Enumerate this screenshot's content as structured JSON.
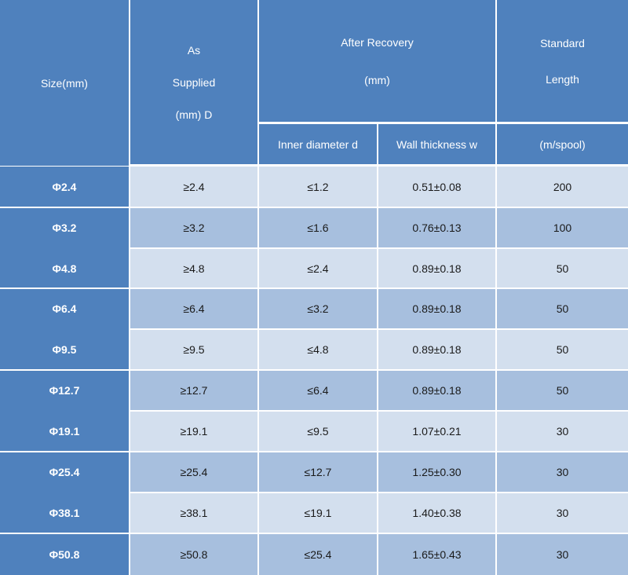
{
  "header": {
    "size": "Size(mm)",
    "as_supplied_lines": [
      "As",
      "Supplied",
      "(mm) D"
    ],
    "after_recovery_lines": [
      "After Recovery",
      "(mm)"
    ],
    "inner_diameter": "Inner diameter d",
    "wall_thickness": "Wall thickness w",
    "standard_length_lines": [
      "Standard",
      "Length"
    ],
    "standard_length_unit": "(m/spool)"
  },
  "rows": [
    {
      "size": "Φ2.4",
      "supplied": "≥2.4",
      "inner": "≤1.2",
      "wall": "0.51±0.08",
      "length": "200"
    },
    {
      "size": "Φ3.2",
      "supplied": "≥3.2",
      "inner": "≤1.6",
      "wall": "0.76±0.13",
      "length": "100"
    },
    {
      "size": "Φ4.8",
      "supplied": "≥4.8",
      "inner": "≤2.4",
      "wall": "0.89±0.18",
      "length": "50"
    },
    {
      "size": "Φ6.4",
      "supplied": "≥6.4",
      "inner": "≤3.2",
      "wall": "0.89±0.18",
      "length": "50"
    },
    {
      "size": "Φ9.5",
      "supplied": "≥9.5",
      "inner": "≤4.8",
      "wall": "0.89±0.18",
      "length": "50"
    },
    {
      "size": "Φ12.7",
      "supplied": "≥12.7",
      "inner": "≤6.4",
      "wall": "0.89±0.18",
      "length": "50"
    },
    {
      "size": "Φ19.1",
      "supplied": "≥19.1",
      "inner": "≤9.5",
      "wall": "1.07±0.21",
      "length": "30"
    },
    {
      "size": "Φ25.4",
      "supplied": "≥25.4",
      "inner": "≤12.7",
      "wall": "1.25±0.30",
      "length": "30"
    },
    {
      "size": "Φ38.1",
      "supplied": "≥38.1",
      "inner": "≤19.1",
      "wall": "1.40±0.38",
      "length": "30"
    },
    {
      "size": "Φ50.8",
      "supplied": "≥50.8",
      "inner": "≤25.4",
      "wall": "1.65±0.43",
      "length": "30"
    }
  ],
  "colors": {
    "header_bg": "#4f81bd",
    "row_light": "#d3dfee",
    "row_mid": "#a7bfde",
    "header_text": "#ffffff"
  }
}
